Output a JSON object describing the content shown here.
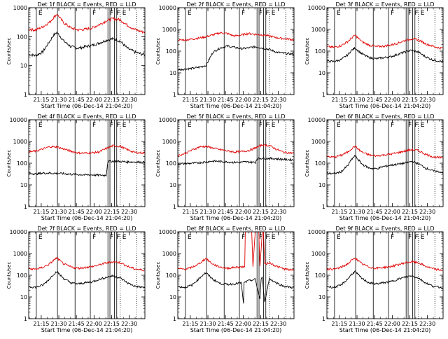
{
  "colors": {
    "events": "#000000",
    "lld": "#e00000",
    "background": "#ffffff"
  },
  "shared": {
    "ylabel": "Counts/sec",
    "xlabel": "Start Time (06-Dec-14 21:04:20)",
    "x_ticks": [
      "21:15",
      "21:30",
      "21:45",
      "22:00",
      "22:15",
      "22:30"
    ],
    "x_tick_minutes": [
      10.67,
      25.67,
      40.67,
      55.67,
      70.67,
      85.67
    ],
    "x_range_minutes": [
      0,
      99
    ],
    "y_scale": "log",
    "marker_letters": [
      "E",
      "F",
      "F",
      "F",
      "E"
    ],
    "marker_minutes": [
      6.5,
      52.5,
      67.5,
      73,
      78
    ]
  },
  "chart_data": [
    {
      "id": "det1",
      "type": "line",
      "title": "Det 1f BLACK = Events, RED = LLD",
      "ylim": [
        1,
        1000
      ],
      "ytick_labels": [
        "1",
        "10",
        "100",
        "1000"
      ],
      "ytick_values": [
        1,
        10,
        100,
        1000
      ],
      "series": [
        {
          "name": "Events",
          "x": [
            0,
            6,
            12,
            18,
            21,
            24,
            27,
            30,
            36,
            42,
            48,
            54,
            60,
            66,
            72,
            78,
            84,
            90,
            96,
            99
          ],
          "values": [
            25,
            22,
            30,
            70,
            110,
            140,
            100,
            70,
            45,
            40,
            45,
            50,
            60,
            75,
            85,
            70,
            40,
            30,
            25,
            24
          ]
        },
        {
          "name": "LLD",
          "x": [
            0,
            6,
            12,
            18,
            21,
            24,
            27,
            30,
            36,
            42,
            48,
            54,
            60,
            66,
            72,
            78,
            84,
            90,
            96,
            99
          ],
          "values": [
            180,
            170,
            220,
            320,
            450,
            600,
            420,
            300,
            200,
            170,
            180,
            200,
            260,
            350,
            420,
            380,
            250,
            180,
            150,
            145
          ]
        }
      ]
    },
    {
      "id": "det2",
      "type": "line",
      "title": "Det 2f BLACK = Events, RED = LLD",
      "ylim": [
        1,
        10000
      ],
      "ytick_labels": [
        "1",
        "10",
        "100",
        "1000",
        "10000"
      ],
      "ytick_values": [
        1,
        10,
        100,
        1000,
        10000
      ],
      "series": [
        {
          "name": "Events",
          "x": [
            0,
            6,
            12,
            18,
            24,
            30,
            36,
            42,
            48,
            54,
            60,
            66,
            72,
            78,
            84,
            90,
            96,
            99
          ],
          "values": [
            14,
            15,
            16,
            18,
            22,
            90,
            140,
            170,
            150,
            130,
            140,
            160,
            140,
            120,
            90,
            80,
            75,
            70
          ]
        },
        {
          "name": "LLD",
          "x": [
            0,
            6,
            12,
            18,
            24,
            30,
            36,
            42,
            48,
            54,
            60,
            66,
            72,
            78,
            84,
            90,
            96,
            99
          ],
          "values": [
            320,
            330,
            360,
            400,
            460,
            560,
            700,
            650,
            500,
            550,
            650,
            600,
            560,
            500,
            420,
            380,
            350,
            340
          ]
        }
      ]
    },
    {
      "id": "det3",
      "type": "line",
      "title": "Det 3f BLACK = Events, RED = LLD",
      "ylim": [
        1,
        10000
      ],
      "ytick_labels": [
        "1",
        "10",
        "100",
        "1000",
        "10000"
      ],
      "ytick_values": [
        1,
        10,
        100,
        1000,
        10000
      ],
      "series": [
        {
          "name": "Events",
          "x": [
            0,
            6,
            12,
            18,
            21,
            24,
            27,
            30,
            36,
            42,
            48,
            54,
            60,
            66,
            72,
            78,
            84,
            90,
            96,
            99
          ],
          "values": [
            35,
            33,
            40,
            70,
            110,
            140,
            100,
            75,
            50,
            45,
            50,
            55,
            70,
            90,
            110,
            90,
            55,
            40,
            35,
            33
          ]
        },
        {
          "name": "LLD",
          "x": [
            0,
            6,
            12,
            18,
            21,
            24,
            27,
            30,
            36,
            42,
            48,
            54,
            60,
            66,
            72,
            78,
            84,
            90,
            96,
            99
          ],
          "values": [
            160,
            150,
            180,
            280,
            400,
            550,
            380,
            270,
            190,
            160,
            170,
            190,
            230,
            300,
            370,
            330,
            220,
            170,
            140,
            140
          ]
        }
      ]
    },
    {
      "id": "det4",
      "type": "line",
      "title": "Det 4f BLACK = Events, RED = LLD",
      "ylim": [
        1,
        10000
      ],
      "ytick_labels": [
        "1",
        "10",
        "100",
        "1000",
        "10000"
      ],
      "ytick_values": [
        1,
        10,
        100,
        1000,
        10000
      ],
      "series": [
        {
          "name": "Events",
          "x": [
            0,
            6,
            12,
            18,
            24,
            30,
            36,
            42,
            48,
            54,
            60,
            66,
            67.5,
            72,
            78,
            84,
            90,
            96,
            99
          ],
          "values": [
            35,
            32,
            35,
            35,
            34,
            33,
            31,
            30,
            29,
            29,
            28,
            28,
            120,
            125,
            120,
            115,
            115,
            112,
            110
          ]
        },
        {
          "name": "LLD",
          "x": [
            0,
            6,
            12,
            18,
            24,
            30,
            36,
            42,
            48,
            54,
            60,
            66,
            72,
            78,
            84,
            90,
            96,
            99
          ],
          "values": [
            330,
            360,
            450,
            580,
            560,
            450,
            360,
            300,
            290,
            300,
            330,
            470,
            640,
            600,
            420,
            320,
            300,
            300
          ]
        }
      ]
    },
    {
      "id": "det5",
      "type": "line",
      "title": "Det 5f BLACK = Events, RED = LLD",
      "ylim": [
        1,
        10000
      ],
      "ytick_labels": [
        "1",
        "10",
        "100",
        "1000",
        "10000"
      ],
      "ytick_values": [
        1,
        10,
        100,
        1000,
        10000
      ],
      "series": [
        {
          "name": "Events",
          "x": [
            0,
            6,
            12,
            18,
            24,
            30,
            36,
            42,
            48,
            54,
            60,
            66,
            67.5,
            72,
            78,
            84,
            90,
            96,
            99
          ],
          "values": [
            95,
            95,
            100,
            105,
            115,
            125,
            120,
            115,
            110,
            112,
            115,
            110,
            160,
            170,
            165,
            160,
            150,
            145,
            140
          ]
        },
        {
          "name": "LLD",
          "x": [
            0,
            6,
            12,
            18,
            24,
            30,
            36,
            42,
            48,
            54,
            60,
            66,
            72,
            78,
            84,
            90,
            96,
            99
          ],
          "values": [
            220,
            280,
            400,
            560,
            600,
            500,
            420,
            370,
            330,
            340,
            380,
            500,
            700,
            650,
            440,
            320,
            300,
            290
          ]
        }
      ]
    },
    {
      "id": "det6",
      "type": "line",
      "title": "Det 6f BLACK = Events, RED = LLD",
      "ylim": [
        1,
        10000
      ],
      "ytick_labels": [
        "1",
        "10",
        "100",
        "1000",
        "10000"
      ],
      "ytick_values": [
        1,
        10,
        100,
        1000,
        10000
      ],
      "series": [
        {
          "name": "Events",
          "x": [
            0,
            6,
            12,
            18,
            21,
            24,
            27,
            30,
            36,
            42,
            48,
            54,
            60,
            66,
            72,
            78,
            84,
            90,
            96,
            99
          ],
          "values": [
            35,
            33,
            40,
            80,
            150,
            220,
            140,
            90,
            60,
            55,
            70,
            80,
            90,
            100,
            120,
            95,
            60,
            45,
            40,
            38
          ]
        },
        {
          "name": "LLD",
          "x": [
            0,
            6,
            12,
            18,
            21,
            24,
            27,
            30,
            36,
            42,
            48,
            54,
            60,
            66,
            72,
            78,
            84,
            90,
            96,
            99
          ],
          "values": [
            200,
            190,
            230,
            330,
            470,
            620,
            430,
            320,
            240,
            220,
            240,
            260,
            300,
            360,
            420,
            380,
            260,
            200,
            180,
            180
          ]
        }
      ]
    },
    {
      "id": "det7",
      "type": "line",
      "title": "Det 7f BLACK = Events, RED = LLD",
      "ylim": [
        1,
        10000
      ],
      "ytick_labels": [
        "1",
        "10",
        "100",
        "1000",
        "10000"
      ],
      "ytick_values": [
        1,
        10,
        100,
        1000,
        10000
      ],
      "series": [
        {
          "name": "Events",
          "x": [
            0,
            6,
            12,
            18,
            21,
            24,
            27,
            30,
            36,
            42,
            48,
            54,
            60,
            66,
            72,
            78,
            84,
            90,
            96,
            99
          ],
          "values": [
            30,
            28,
            35,
            70,
            110,
            150,
            100,
            70,
            45,
            40,
            45,
            50,
            65,
            80,
            95,
            75,
            45,
            32,
            28,
            27
          ]
        },
        {
          "name": "LLD",
          "x": [
            0,
            6,
            12,
            18,
            21,
            24,
            27,
            30,
            36,
            42,
            48,
            54,
            60,
            66,
            72,
            78,
            84,
            90,
            96,
            99
          ],
          "values": [
            200,
            190,
            230,
            340,
            480,
            640,
            450,
            330,
            240,
            210,
            230,
            250,
            300,
            370,
            420,
            380,
            260,
            200,
            175,
            175
          ]
        }
      ]
    },
    {
      "id": "det8",
      "type": "line",
      "title": "Det 8f BLACK = Events, RED = LLD",
      "ylim": [
        1,
        10000
      ],
      "ytick_labels": [
        "1",
        "10",
        "100",
        "1000",
        "10000"
      ],
      "ytick_values": [
        1,
        10,
        100,
        1000,
        10000
      ],
      "series": [
        {
          "name": "Events",
          "x": [
            0,
            6,
            12,
            18,
            21,
            24,
            27,
            30,
            36,
            42,
            48,
            54,
            56,
            56.5,
            60,
            66,
            70,
            71,
            72,
            74,
            78,
            84,
            90,
            96,
            99
          ],
          "values": [
            30,
            28,
            35,
            70,
            100,
            130,
            90,
            65,
            42,
            38,
            40,
            45,
            5,
            45,
            55,
            65,
            8,
            70,
            75,
            6,
            70,
            45,
            32,
            28,
            27
          ]
        },
        {
          "name": "LLD",
          "x": [
            0,
            6,
            12,
            18,
            21,
            24,
            27,
            30,
            36,
            42,
            48,
            54,
            57,
            57.5,
            60,
            63,
            64,
            66,
            69,
            70,
            72,
            73,
            74,
            78,
            84,
            90,
            96,
            99
          ],
          "values": [
            200,
            190,
            230,
            330,
            460,
            600,
            430,
            320,
            240,
            210,
            230,
            240,
            250,
            10000,
            10000,
            10000,
            250,
            10000,
            10000,
            260,
            10000,
            10000,
            320,
            380,
            260,
            200,
            175,
            175
          ]
        }
      ]
    },
    {
      "id": "det9",
      "type": "line",
      "title": "Det 9f BLACK = Events, RED = LLD",
      "ylim": [
        1,
        10000
      ],
      "ytick_labels": [
        "1",
        "10",
        "100",
        "1000",
        "10000"
      ],
      "ytick_values": [
        1,
        10,
        100,
        1000,
        10000
      ],
      "series": [
        {
          "name": "Events",
          "x": [
            0,
            6,
            12,
            18,
            21,
            24,
            27,
            30,
            36,
            42,
            48,
            54,
            60,
            66,
            72,
            78,
            84,
            90,
            96,
            99
          ],
          "values": [
            30,
            28,
            35,
            70,
            110,
            150,
            100,
            70,
            45,
            40,
            45,
            50,
            65,
            80,
            95,
            75,
            45,
            32,
            28,
            27
          ]
        },
        {
          "name": "LLD",
          "x": [
            0,
            6,
            12,
            18,
            21,
            24,
            27,
            30,
            36,
            42,
            48,
            54,
            60,
            66,
            72,
            78,
            84,
            90,
            96,
            99
          ],
          "values": [
            200,
            190,
            230,
            340,
            480,
            640,
            450,
            330,
            240,
            210,
            230,
            250,
            300,
            370,
            420,
            380,
            260,
            200,
            175,
            175
          ]
        }
      ]
    }
  ]
}
